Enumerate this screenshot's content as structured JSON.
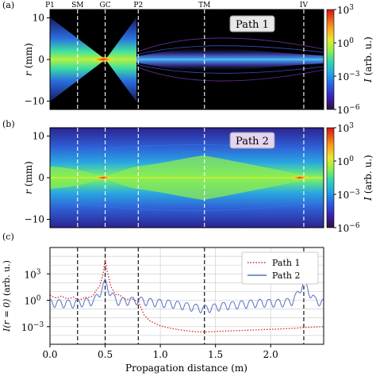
{
  "chart_data": [
    {
      "panel": "(a)",
      "type": "heatmap",
      "ylabel": "r (mm)",
      "ylabel_var": "r",
      "ylabel_unit": "(mm)",
      "xlim": [
        0,
        2.48
      ],
      "ylim": [
        -12,
        12
      ],
      "yticks": [
        10,
        0,
        -10
      ],
      "ytick_labels": [
        "10",
        "0",
        "−10"
      ],
      "badge": "Path 1",
      "markers": [
        {
          "label": "P1",
          "x": 0.0
        },
        {
          "label": "SM",
          "x": 0.25
        },
        {
          "label": "GC",
          "x": 0.5
        },
        {
          "label": "P2",
          "x": 0.8
        },
        {
          "label": "TM",
          "x": 1.4
        },
        {
          "label": "IV",
          "x": 2.3
        }
      ],
      "colorbar": {
        "label": "I (arb. u.)",
        "label_var": "I",
        "label_unit": "(arb. u.)",
        "scale": "log",
        "ticks": [
          {
            "base": "10",
            "exp": "3"
          },
          {
            "base": "10",
            "exp": "0"
          },
          {
            "base": "10",
            "exp": "−3"
          },
          {
            "base": "10",
            "exp": "−6"
          }
        ],
        "range_log10": [
          -6,
          3
        ]
      }
    },
    {
      "panel": "(b)",
      "type": "heatmap",
      "ylabel": "r (mm)",
      "ylabel_var": "r",
      "ylabel_unit": "(mm)",
      "xlim": [
        0,
        2.48
      ],
      "ylim": [
        -12,
        12
      ],
      "yticks": [
        10,
        0,
        -10
      ],
      "ytick_labels": [
        "10",
        "0",
        "−10"
      ],
      "badge": "Path 2",
      "markers": [
        {
          "label": "SM",
          "x": 0.25
        },
        {
          "label": "GC",
          "x": 0.5
        },
        {
          "label": "P2",
          "x": 0.8
        },
        {
          "label": "TM",
          "x": 1.4
        },
        {
          "label": "IV",
          "x": 2.3
        }
      ],
      "colorbar": {
        "label": "I (arb. u.)",
        "label_var": "I",
        "label_unit": "(arb. u.)",
        "scale": "log",
        "ticks": [
          {
            "base": "10",
            "exp": "3"
          },
          {
            "base": "10",
            "exp": "0"
          },
          {
            "base": "10",
            "exp": "−3"
          },
          {
            "base": "10",
            "exp": "−6"
          }
        ],
        "range_log10": [
          -6,
          3
        ]
      }
    },
    {
      "panel": "(c)",
      "type": "line",
      "xlabel": "Propagation distance (m)",
      "ylabel": "I(r = 0) (arb. u.)",
      "ylabel_var": "I(r = 0)",
      "ylabel_unit": "(arb. u.)",
      "yscale": "log",
      "xlim": [
        0,
        2.48
      ],
      "ylim_log10": [
        -5,
        6
      ],
      "xticks": [
        0.0,
        0.5,
        1.0,
        1.5,
        2.0
      ],
      "xtick_labels": [
        "0.0",
        "0.5",
        "1.0",
        "1.5",
        "2.0"
      ],
      "yticks": [
        {
          "base": "10",
          "exp": "3"
        },
        {
          "base": "10",
          "exp": "0"
        },
        {
          "base": "10",
          "exp": "−3"
        }
      ],
      "grid": true,
      "legend": "top-right",
      "markers_x": [
        0.25,
        0.5,
        0.8,
        1.4,
        2.3
      ],
      "series": [
        {
          "name": "Path 1",
          "style": "dotted",
          "color": "#d62728",
          "x": [
            0.0,
            0.1,
            0.2,
            0.3,
            0.4,
            0.45,
            0.48,
            0.5,
            0.52,
            0.55,
            0.6,
            0.7,
            0.78,
            0.8,
            0.81,
            0.85,
            0.9,
            1.0,
            1.1,
            1.2,
            1.3,
            1.4,
            1.6,
            1.8,
            2.0,
            2.2,
            2.3,
            2.48
          ],
          "log10_y": [
            0.6,
            0.5,
            0.4,
            0.3,
            0.8,
            1.8,
            3.2,
            4.8,
            3.2,
            1.8,
            0.8,
            0.3,
            0.2,
            0.0,
            -0.4,
            -1.6,
            -2.3,
            -2.9,
            -3.2,
            -3.4,
            -3.55,
            -3.6,
            -3.5,
            -3.4,
            -3.3,
            -3.2,
            -3.1,
            -3.0
          ]
        },
        {
          "name": "Path 2",
          "style": "solid",
          "color": "#5470c6",
          "x": [
            0.0,
            0.2,
            0.4,
            0.45,
            0.5,
            0.55,
            0.6,
            0.7,
            0.8,
            0.9,
            1.0,
            1.1,
            1.2,
            1.3,
            1.4,
            1.5,
            1.6,
            1.7,
            1.8,
            1.9,
            2.0,
            2.1,
            2.2,
            2.25,
            2.3,
            2.35,
            2.4,
            2.48
          ],
          "log10_y": [
            0.1,
            0.0,
            0.3,
            1.2,
            2.4,
            1.2,
            0.3,
            0.3,
            0.4,
            0.2,
            0.1,
            0.0,
            -0.2,
            -0.4,
            -0.6,
            -0.4,
            -0.2,
            -0.1,
            0.0,
            0.1,
            0.1,
            0.1,
            0.3,
            1.2,
            2.5,
            1.3,
            0.4,
            0.1
          ]
        }
      ]
    }
  ]
}
